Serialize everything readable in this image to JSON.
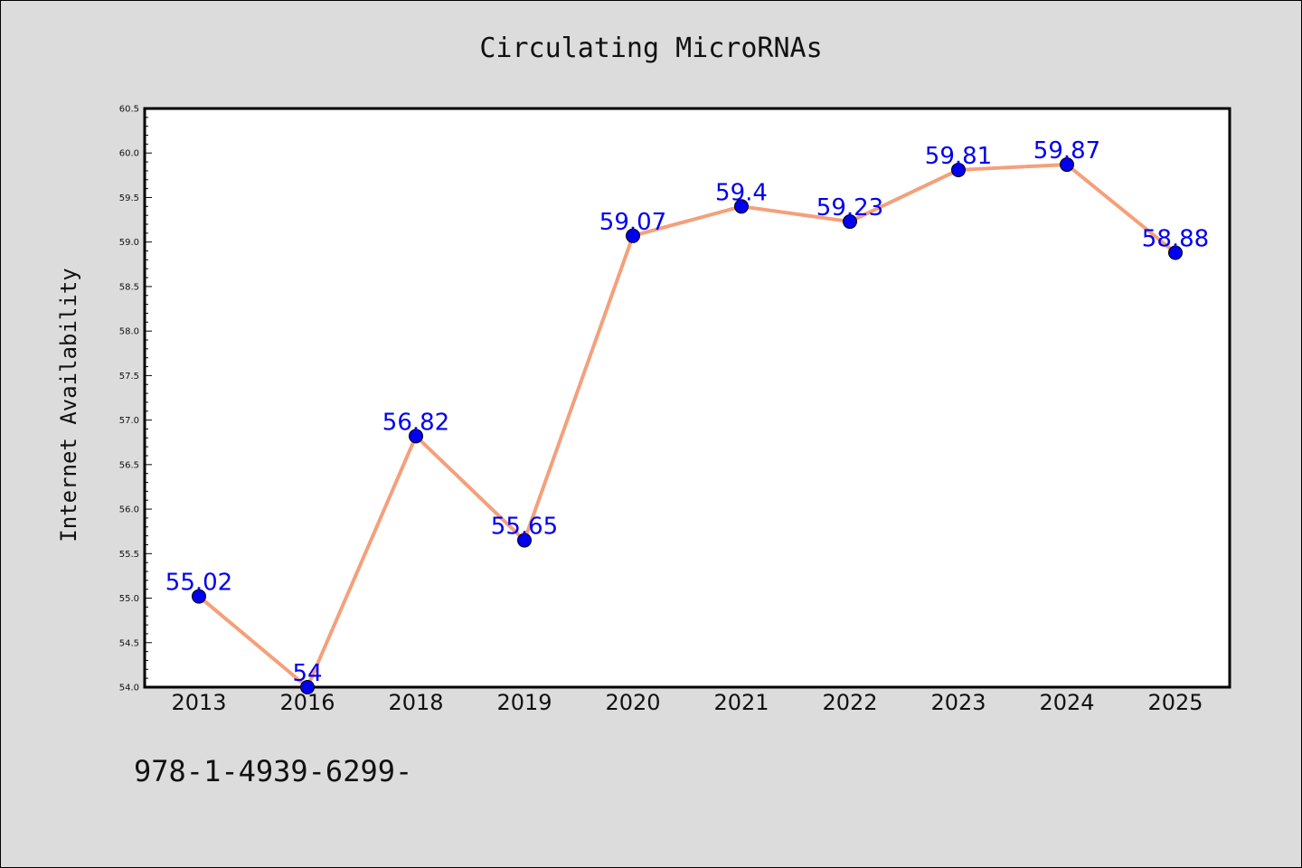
{
  "chart_data": {
    "type": "line",
    "title": "Circulating MicroRNAs",
    "xlabel": "",
    "ylabel": "Internet Availability",
    "categories": [
      "2013",
      "2016",
      "2018",
      "2019",
      "2020",
      "2021",
      "2022",
      "2023",
      "2024",
      "2025"
    ],
    "series": [
      {
        "values": [
          55.02,
          54,
          56.82,
          55.65,
          59.07,
          59.4,
          59.23,
          59.81,
          59.87,
          58.88
        ],
        "data_labels": [
          "55.02",
          "54",
          "56.82",
          "55.65",
          "59.07",
          "59.4",
          "59.23",
          "59.81",
          "59.87",
          "58.88"
        ]
      }
    ],
    "ylim": [
      54.0,
      60.5
    ],
    "yticks": [
      "54.0",
      "54.5",
      "55.0",
      "55.5",
      "56.0",
      "56.5",
      "57.0",
      "57.5",
      "58.0",
      "58.5",
      "59.0",
      "59.5",
      "60.0",
      "60.5"
    ],
    "grid": false,
    "colors": {
      "line": "#f4a07c",
      "marker": "#0000ee",
      "label": "#0000ee",
      "background": "#dcdcdc",
      "plot_area": "#ffffff"
    }
  },
  "footnote": "978-1-4939-6299-"
}
